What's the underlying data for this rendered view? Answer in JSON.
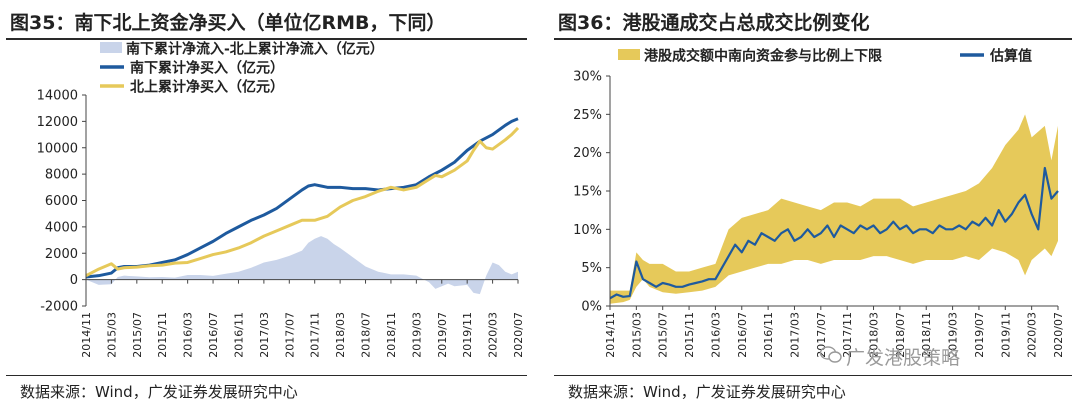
{
  "left": {
    "title": "图35：南下北上资金净买入（单位亿RMB，下同）",
    "source": "数据来源：Wind，广发证券发展研究中心",
    "chart_data": {
      "type": "line",
      "title": "南下北上资金净买入（单位亿RMB，下同）",
      "xlabel": "",
      "ylabel": "",
      "ylim": [
        -2000,
        14000
      ],
      "yticks": [
        -2000,
        0,
        2000,
        4000,
        6000,
        8000,
        10000,
        12000,
        14000
      ],
      "ytick_labels": [
        "-2000",
        "0",
        "2000",
        "4000",
        "6000",
        "8000",
        "10000",
        "12000",
        "14000"
      ],
      "xlim": [
        0,
        68
      ],
      "xticks": [
        0,
        4,
        8,
        12,
        16,
        20,
        24,
        28,
        32,
        36,
        40,
        44,
        48,
        52,
        56,
        60,
        64,
        68
      ],
      "xtick_labels": [
        "2014/11",
        "2015/03",
        "2015/07",
        "2015/11",
        "2016/03",
        "2016/07",
        "2016/11",
        "2017/03",
        "2017/07",
        "2017/11",
        "2018/03",
        "2018/07",
        "2018/11",
        "2019/03",
        "2019/07",
        "2019/11",
        "2020/03",
        "2020/07"
      ],
      "legend": [
        "南下累计净流入-北上累计净流入（亿元）",
        "南下累计净买入（亿元）",
        "北上累计净买入（亿元）"
      ],
      "series": [
        {
          "name": "南下累计净流入-北上累计净流入（亿元）",
          "kind": "area",
          "color": "#c9d4ea",
          "x": [
            0,
            2,
            4,
            5,
            6,
            8,
            10,
            12,
            14,
            16,
            18,
            20,
            22,
            24,
            26,
            28,
            30,
            32,
            34,
            35,
            36,
            37,
            38,
            39,
            40,
            42,
            44,
            46,
            48,
            50,
            52,
            54,
            55,
            56,
            57,
            58,
            60,
            61,
            62,
            63,
            64,
            65,
            66,
            67,
            68
          ],
          "y": [
            0,
            -400,
            -350,
            200,
            300,
            250,
            180,
            200,
            150,
            350,
            350,
            280,
            450,
            600,
            900,
            1300,
            1500,
            1800,
            2200,
            2800,
            3100,
            3300,
            3100,
            2700,
            2400,
            1700,
            1000,
            600,
            400,
            400,
            300,
            -200,
            -700,
            -500,
            -300,
            -500,
            -400,
            -1000,
            -1100,
            300,
            1300,
            1100,
            600,
            400,
            600
          ]
        },
        {
          "name": "南下累计净买入（亿元）",
          "kind": "line",
          "color": "#1e5a9e",
          "x": [
            0,
            2,
            4,
            5,
            6,
            8,
            10,
            12,
            14,
            16,
            18,
            20,
            22,
            24,
            26,
            28,
            30,
            32,
            34,
            35,
            36,
            37,
            38,
            40,
            42,
            44,
            46,
            48,
            50,
            52,
            54,
            56,
            58,
            60,
            62,
            64,
            66,
            67,
            68
          ],
          "y": [
            200,
            300,
            500,
            900,
            1000,
            1000,
            1100,
            1300,
            1500,
            1900,
            2400,
            2900,
            3500,
            4000,
            4500,
            4900,
            5400,
            6100,
            6800,
            7100,
            7200,
            7100,
            7000,
            7000,
            6900,
            6900,
            6800,
            6900,
            7000,
            7200,
            7800,
            8300,
            8900,
            9800,
            10500,
            11000,
            11700,
            12000,
            12200
          ]
        },
        {
          "name": "北上累计净买入（亿元）",
          "kind": "line",
          "color": "#e6c95a",
          "x": [
            0,
            2,
            4,
            5,
            6,
            8,
            10,
            12,
            14,
            16,
            18,
            20,
            22,
            24,
            26,
            28,
            30,
            32,
            34,
            36,
            38,
            40,
            42,
            44,
            46,
            48,
            50,
            52,
            54,
            55,
            56,
            58,
            60,
            61,
            62,
            63,
            64,
            66,
            67,
            68
          ],
          "y": [
            300,
            800,
            1200,
            800,
            900,
            950,
            1050,
            1100,
            1250,
            1300,
            1600,
            1900,
            2100,
            2400,
            2800,
            3300,
            3700,
            4100,
            4500,
            4500,
            4800,
            5500,
            6000,
            6300,
            6700,
            7000,
            6800,
            7000,
            7600,
            7900,
            7800,
            8300,
            9000,
            9800,
            10500,
            10000,
            9900,
            10600,
            11000,
            11500
          ]
        }
      ]
    }
  },
  "right": {
    "title": "图36：港股通成交占总成交比例变化",
    "source": "数据来源：Wind，广发证券发展研究中心",
    "watermark": "广发港股策略",
    "chart_data": {
      "type": "area",
      "title": "港股通成交占总成交比例变化",
      "xlabel": "",
      "ylabel": "",
      "ylim": [
        0,
        30
      ],
      "yticks": [
        0,
        5,
        10,
        15,
        20,
        25,
        30
      ],
      "ytick_labels": [
        "0%",
        "5%",
        "10%",
        "15%",
        "20%",
        "25%",
        "30%"
      ],
      "xlim": [
        0,
        68
      ],
      "xticks": [
        0,
        4,
        8,
        12,
        16,
        20,
        24,
        28,
        32,
        36,
        40,
        44,
        48,
        52,
        56,
        60,
        64,
        68
      ],
      "xtick_labels": [
        "2014/11",
        "2015/03",
        "2015/07",
        "2015/11",
        "2016/03",
        "2016/07",
        "2016/11",
        "2017/03",
        "2017/07",
        "2017/11",
        "2018/03",
        "2018/07",
        "2018/11",
        "2019/03",
        "2019/07",
        "2019/11",
        "2020/03",
        "2020/07"
      ],
      "legend": [
        "港股成交额中南向资金参与比例上下限",
        "估算值"
      ],
      "series": [
        {
          "name": "港股成交额中南向资金参与比例上下限",
          "kind": "band",
          "color": "#e6c95a",
          "x": [
            0,
            2,
            3,
            4,
            5,
            6,
            8,
            10,
            12,
            14,
            16,
            18,
            20,
            22,
            24,
            26,
            28,
            30,
            32,
            34,
            36,
            38,
            40,
            42,
            44,
            46,
            48,
            50,
            52,
            54,
            56,
            58,
            60,
            62,
            63,
            64,
            66,
            67,
            68
          ],
          "low": [
            0.3,
            0.5,
            0.8,
            2.5,
            3.5,
            2.5,
            1.8,
            1.6,
            1.8,
            2.0,
            2.5,
            4.0,
            4.5,
            5.0,
            5.5,
            5.5,
            6.0,
            6.0,
            5.5,
            6.0,
            6.0,
            6.0,
            6.5,
            6.5,
            6.0,
            5.5,
            6.0,
            6.0,
            6.0,
            6.5,
            6.0,
            7.5,
            7.0,
            6.0,
            4.0,
            6.0,
            7.5,
            6.5,
            8.5
          ],
          "high": [
            2.0,
            2.0,
            2.0,
            7.0,
            6.0,
            5.5,
            5.5,
            4.5,
            4.5,
            5.0,
            5.5,
            10.0,
            11.5,
            12.0,
            12.5,
            14.0,
            13.5,
            13.0,
            12.5,
            13.5,
            13.5,
            13.0,
            14.0,
            14.0,
            14.0,
            13.0,
            13.5,
            14.0,
            14.5,
            15.0,
            16.0,
            18.0,
            21.0,
            23.0,
            25.0,
            22.0,
            23.5,
            19.0,
            23.5
          ]
        },
        {
          "name": "估算值",
          "kind": "line",
          "color": "#1e5a9e",
          "x": [
            0,
            1,
            2,
            3,
            4,
            5,
            6,
            7,
            8,
            9,
            10,
            11,
            12,
            13,
            14,
            15,
            16,
            17,
            18,
            19,
            20,
            21,
            22,
            23,
            24,
            25,
            26,
            27,
            28,
            29,
            30,
            31,
            32,
            33,
            34,
            35,
            36,
            37,
            38,
            39,
            40,
            41,
            42,
            43,
            44,
            45,
            46,
            47,
            48,
            49,
            50,
            51,
            52,
            53,
            54,
            55,
            56,
            57,
            58,
            59,
            60,
            61,
            62,
            63,
            64,
            65,
            66,
            67,
            68
          ],
          "y": [
            1.0,
            1.5,
            1.2,
            1.3,
            5.8,
            3.5,
            3.0,
            2.5,
            3.0,
            2.8,
            2.5,
            2.5,
            2.8,
            3.0,
            3.2,
            3.5,
            3.5,
            5.0,
            6.5,
            8.0,
            7.0,
            8.5,
            8.0,
            9.5,
            9.0,
            8.5,
            9.5,
            10.0,
            8.5,
            9.0,
            10.0,
            9.0,
            9.5,
            10.5,
            9.0,
            10.5,
            10.0,
            9.5,
            10.5,
            10.0,
            10.5,
            9.5,
            10.0,
            11.0,
            10.0,
            10.5,
            9.5,
            10.0,
            10.0,
            9.5,
            10.5,
            10.0,
            10.0,
            10.5,
            10.0,
            11.0,
            10.5,
            11.5,
            10.5,
            12.5,
            11.0,
            12.0,
            13.5,
            14.5,
            12.0,
            10.0,
            18.0,
            14.0,
            15.0
          ]
        }
      ]
    }
  }
}
